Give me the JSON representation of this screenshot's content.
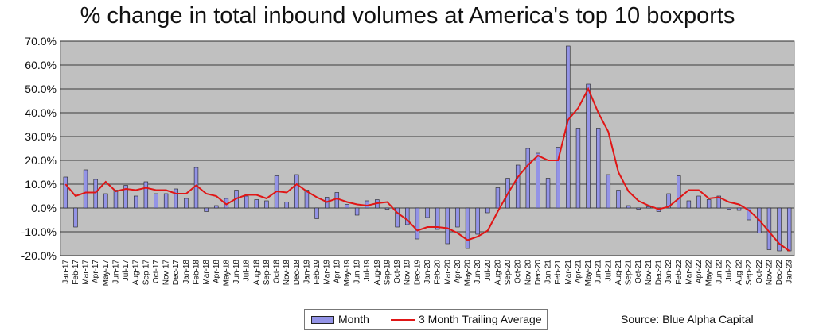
{
  "chart_data": {
    "type": "bar",
    "title": "% change in total inbound volumes at America's top 10 boxports",
    "source": "Source: Blue Alpha Capital",
    "ylim": [
      -20,
      70
    ],
    "yticks": [
      "-20.0%",
      "-10.0%",
      "0.0%",
      "10.0%",
      "20.0%",
      "30.0%",
      "40.0%",
      "50.0%",
      "60.0%",
      "70.0%"
    ],
    "grid": true,
    "legend_position": "bottom",
    "colors": {
      "plot_bg": "#c0c0c0",
      "bar": "#9393e6",
      "bar_edge": "#222222",
      "line": "#e01616"
    },
    "categories": [
      "Jan-17",
      "Feb-17",
      "Mar-17",
      "Apr-17",
      "May-17",
      "Jun-17",
      "Jul-17",
      "Aug-17",
      "Sep-17",
      "Oct-17",
      "Nov-17",
      "Dec-17",
      "Jan-18",
      "Feb-18",
      "Mar-18",
      "Apr-18",
      "May-18",
      "Jun-18",
      "Jul-18",
      "Aug-18",
      "Sep-18",
      "Oct-18",
      "Nov-18",
      "Dec-18",
      "Jan-19",
      "Feb-19",
      "Mar-19",
      "Apr-19",
      "May-19",
      "Jun-19",
      "Jul-19",
      "Aug-19",
      "Sep-19",
      "Oct-19",
      "Nov-19",
      "Dec-19",
      "Jan-20",
      "Feb-20",
      "Mar-20",
      "Apr-20",
      "May-20",
      "Jun-20",
      "Jul-20",
      "Aug-20",
      "Sep-20",
      "Oct-20",
      "Nov-20",
      "Dec-20",
      "Jan-21",
      "Feb-21",
      "Mar-21",
      "Apr-21",
      "May-21",
      "Jun-21",
      "Jul-21",
      "Aug-21",
      "Sep-21",
      "Oct-21",
      "Nov-21",
      "Dec-21",
      "Jan-22",
      "Feb-22",
      "Mar-22",
      "Apr-22",
      "May-22",
      "Jun-22",
      "Jul-22",
      "Aug-22",
      "Sep-22",
      "Oct-22",
      "Nov-22",
      "Dec-22",
      "Jan-23"
    ],
    "series": [
      {
        "name": "Month",
        "kind": "bar",
        "values": [
          13,
          -8,
          16,
          12,
          6,
          7.5,
          9.5,
          5,
          11,
          6,
          6,
          8,
          4,
          17,
          -1.5,
          1,
          4,
          7.5,
          5,
          3.5,
          3,
          13.5,
          2.5,
          14,
          7.5,
          -4.5,
          4.5,
          6.5,
          1.5,
          -3,
          3,
          3.5,
          -0.5,
          -8,
          -7,
          -13,
          -4,
          -9,
          -15,
          -8,
          -17,
          -11,
          -2,
          8.5,
          12.5,
          18,
          25,
          23,
          12.5,
          25.5,
          68,
          33.5,
          52,
          33.5,
          14,
          7.5,
          1,
          -0.5,
          0.5,
          -1.5,
          6,
          13.5,
          3,
          5,
          3.5,
          5,
          -0.5,
          -1,
          -5,
          -10.5,
          -17.5,
          -18,
          -18
        ]
      },
      {
        "name": "3 Month Trailing Average",
        "kind": "line",
        "values": [
          10,
          5,
          6.5,
          6.5,
          11,
          7,
          8,
          7.5,
          8.5,
          7.5,
          7.5,
          6,
          6,
          9.5,
          6,
          5,
          1.5,
          4,
          5.5,
          5.5,
          4,
          7,
          6.5,
          10,
          7,
          4.5,
          2.5,
          4,
          2.5,
          1.5,
          1,
          2,
          2.5,
          -2,
          -5,
          -9.5,
          -8,
          -8,
          -8.5,
          -10.5,
          -13.5,
          -12,
          -9.5,
          -1.5,
          6,
          13,
          18,
          22,
          20,
          20,
          37,
          42,
          50,
          40,
          32,
          15,
          7,
          3,
          1,
          -0.5,
          0.5,
          4,
          7.5,
          7.5,
          4,
          4.5,
          2.5,
          1.5,
          -1,
          -5,
          -10,
          -15,
          -18
        ]
      }
    ]
  }
}
